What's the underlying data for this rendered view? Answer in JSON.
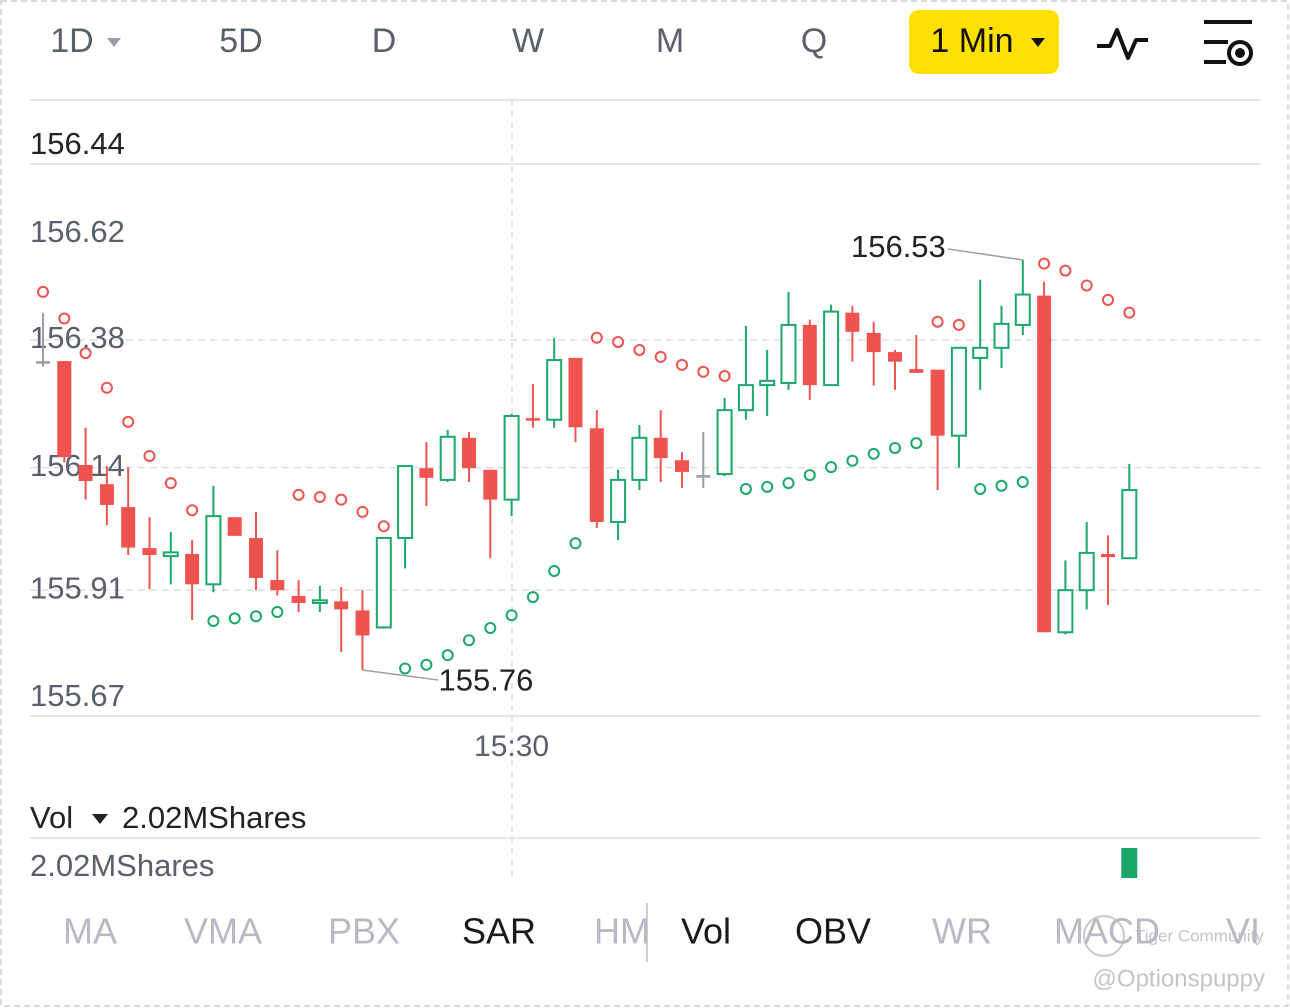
{
  "period_tabs": [
    "1D",
    "5D",
    "D",
    "W",
    "M",
    "Q"
  ],
  "interval": "1 Min",
  "main_indicators": [
    {
      "label": "MA",
      "active": false
    },
    {
      "label": "VMA",
      "active": false
    },
    {
      "label": "PBX",
      "active": false
    },
    {
      "label": "SAR",
      "active": true
    },
    {
      "label": "HM",
      "active": false
    }
  ],
  "sub_indicators": [
    {
      "label": "Vol",
      "active": true
    },
    {
      "label": "OBV",
      "active": true
    },
    {
      "label": "WR",
      "active": false
    },
    {
      "label": "MACD",
      "active": false
    },
    {
      "label": "VI",
      "active": false
    }
  ],
  "watermark": "Tiger Community",
  "credit": "@Optionspuppy",
  "chart_data": {
    "type": "candlestick",
    "price_readout": 156.44,
    "categories": [
      null,
      null,
      null,
      null,
      null,
      null,
      null,
      null,
      null,
      null,
      null,
      null,
      null,
      null,
      null,
      null,
      null,
      null,
      null,
      null,
      null,
      null,
      "15:30",
      null,
      null,
      null,
      null,
      null,
      null,
      null,
      null,
      null,
      null,
      null,
      null,
      null,
      null,
      null,
      null,
      null,
      null,
      null,
      null,
      null,
      null,
      null,
      null,
      null,
      null,
      null,
      null,
      null
    ],
    "open": [
      156.34,
      156.34,
      156.145,
      156.109,
      156.066,
      155.989,
      155.974,
      155.978,
      155.921,
      156.047,
      156.008,
      155.929,
      155.899,
      155.886,
      155.889,
      155.872,
      155.84,
      156.008,
      156.139,
      156.117,
      156.196,
      156.136,
      156.08,
      156.233,
      156.23,
      156.346,
      156.214,
      156.038,
      156.117,
      156.196,
      156.154,
      156.126,
      156.128,
      156.248,
      156.295,
      156.299,
      156.408,
      156.295,
      156.431,
      156.393,
      156.357,
      156.325,
      156.324,
      156.2,
      156.346,
      156.365,
      156.408,
      156.463,
      155.831,
      155.91,
      155.978,
      155.97
    ],
    "high": [
      156.43,
      156.34,
      156.215,
      156.143,
      156.141,
      156.047,
      156.019,
      156.004,
      156.106,
      156.047,
      156.057,
      155.985,
      155.929,
      155.918,
      155.916,
      155.91,
      156.008,
      156.143,
      156.188,
      156.211,
      156.207,
      156.136,
      156.241,
      156.297,
      156.384,
      156.346,
      156.248,
      156.136,
      156.22,
      156.248,
      156.169,
      156.207,
      156.271,
      156.406,
      156.361,
      156.47,
      156.418,
      156.446,
      156.444,
      156.414,
      156.361,
      156.389,
      156.324,
      156.365,
      156.493,
      156.444,
      156.53,
      156.489,
      155.966,
      156.038,
      156.013,
      156.147
    ],
    "low": [
      156.33,
      156.15,
      156.08,
      156.032,
      155.976,
      155.912,
      155.921,
      155.854,
      155.906,
      156.012,
      155.91,
      155.9,
      155.869,
      155.869,
      155.794,
      155.76,
      155.84,
      155.951,
      156.068,
      156.113,
      156.113,
      155.97,
      156.049,
      156.215,
      156.215,
      156.188,
      156.027,
      156.004,
      156.098,
      156.113,
      156.102,
      156.102,
      156.124,
      156.23,
      156.237,
      156.286,
      156.267,
      156.295,
      156.339,
      156.294,
      156.286,
      156.318,
      156.098,
      156.14,
      156.286,
      156.327,
      156.389,
      155.831,
      155.827,
      155.874,
      155.882,
      155.97
    ],
    "close": [
      156.34,
      156.16,
      156.115,
      156.07,
      155.99,
      155.976,
      155.981,
      155.921,
      156.049,
      156.012,
      155.933,
      155.91,
      155.886,
      155.891,
      155.874,
      155.825,
      156.008,
      156.143,
      156.121,
      156.198,
      156.139,
      156.08,
      156.237,
      156.23,
      156.342,
      156.216,
      156.038,
      156.117,
      156.196,
      156.158,
      156.132,
      156.126,
      156.248,
      156.295,
      156.303,
      156.408,
      156.295,
      156.433,
      156.395,
      156.357,
      156.339,
      156.318,
      156.2,
      156.365,
      156.365,
      156.41,
      156.465,
      155.831,
      155.91,
      155.98,
      155.972,
      156.098
    ],
    "sar": [
      156.47,
      156.42,
      156.355,
      156.29,
      156.226,
      156.162,
      156.111,
      156.06,
      155.852,
      155.857,
      155.861,
      155.869,
      156.089,
      156.085,
      156.08,
      156.057,
      156.03,
      155.763,
      155.77,
      155.788,
      155.816,
      155.839,
      155.863,
      155.897,
      155.946,
      155.998,
      156.384,
      156.376,
      156.361,
      156.348,
      156.333,
      156.32,
      156.312,
      156.1,
      156.104,
      156.111,
      156.126,
      156.141,
      156.153,
      156.166,
      156.177,
      156.186,
      156.414,
      156.408,
      156.1,
      156.106,
      156.113,
      156.523,
      156.51,
      156.482,
      156.455,
      156.431
    ],
    "up_color": "#1aa86a",
    "down_color": "#ef5350",
    "flat_color": "#9a9ca8",
    "ylim": [
      155.67,
      156.62
    ],
    "yticks": [
      156.62,
      156.38,
      156.14,
      155.91,
      155.67
    ],
    "grid": true,
    "volume": {
      "title": "Vol",
      "values": [
        null,
        null,
        null,
        null,
        null,
        null,
        null,
        null,
        null,
        null,
        null,
        null,
        null,
        null,
        null,
        null,
        null,
        null,
        null,
        null,
        null,
        null,
        null,
        null,
        null,
        null,
        null,
        null,
        null,
        null,
        null,
        null,
        null,
        null,
        null,
        null,
        null,
        null,
        null,
        null,
        null,
        null,
        null,
        null,
        null,
        null,
        null,
        null,
        null,
        null,
        null,
        2020000
      ],
      "value_labels": [
        null,
        null,
        null,
        null,
        null,
        null,
        null,
        null,
        null,
        null,
        null,
        null,
        null,
        null,
        null,
        null,
        null,
        null,
        null,
        null,
        null,
        null,
        null,
        null,
        null,
        null,
        null,
        null,
        null,
        null,
        null,
        null,
        null,
        null,
        null,
        null,
        null,
        null,
        null,
        null,
        null,
        null,
        null,
        null,
        null,
        null,
        null,
        null,
        null,
        null,
        null,
        "2.02MShares"
      ],
      "ylim": [
        0,
        2020000
      ],
      "yticks": [
        {
          "value": 2020000,
          "label": "2.02MShares"
        }
      ]
    }
  }
}
